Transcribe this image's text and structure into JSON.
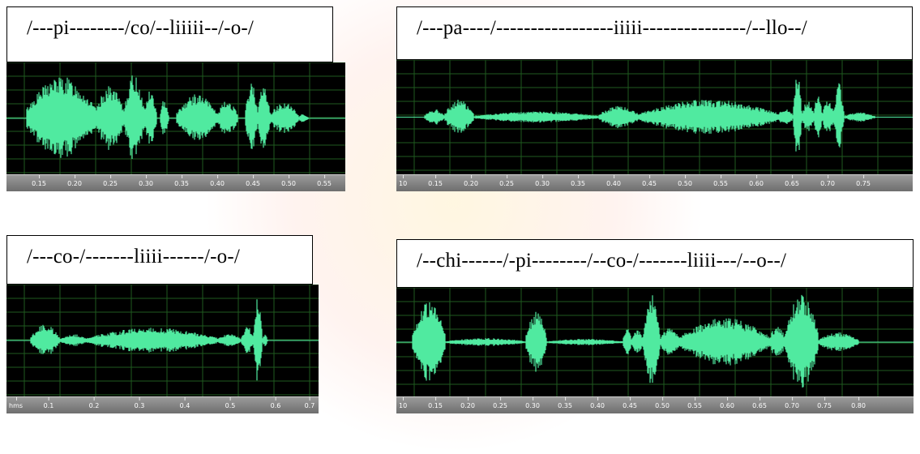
{
  "panels": [
    {
      "label": "/---pi--------/co/--liiiii--/-o-/",
      "ticks": [
        "0.15",
        "0.20",
        "0.25",
        "0.30",
        "0.35",
        "0.40",
        "0.45",
        "0.50",
        "0.55"
      ]
    },
    {
      "label": "/---pa----/-----------------iiiii---------------/--llo--/",
      "ticks": [
        "10",
        "0.15",
        "0.20",
        "0.25",
        "0.30",
        "0.35",
        "0.40",
        "0.45",
        "0.50",
        "0.55",
        "0.60",
        "0.65",
        "0.70",
        "0.75"
      ]
    },
    {
      "label": "/---co-/-------liiii------/-o-/",
      "ticks": [
        "hms",
        "0.1",
        "0.2",
        "0.3",
        "0.4",
        "0.5",
        "0.6",
        "0.7"
      ]
    },
    {
      "label": "/--chi------/-pi--------/--co-/-------liiii---/--o--/",
      "ticks": [
        "10",
        "0.15",
        "0.20",
        "0.25",
        "0.30",
        "0.35",
        "0.40",
        "0.45",
        "0.50",
        "0.55",
        "0.60",
        "0.65",
        "0.70",
        "0.75",
        "0.80"
      ]
    }
  ],
  "colors": {
    "waveform": "#50eaa0",
    "background": "#000000",
    "grid": "#1f5a1f",
    "ruler": "#7f7f7f"
  }
}
